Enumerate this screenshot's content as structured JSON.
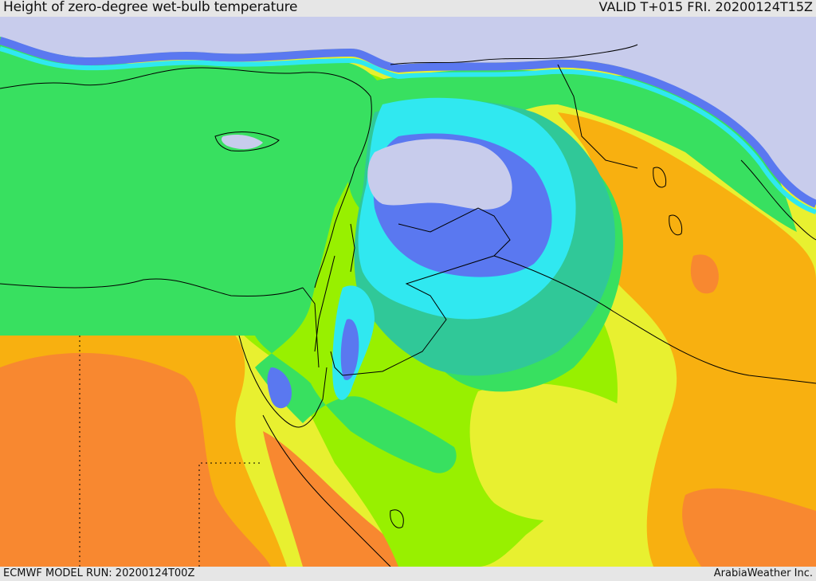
{
  "header": {
    "title": "Height of zero-degree wet-bulb temperature",
    "valid": "VALID T+015 FRI. 20200124T15Z"
  },
  "footer": {
    "model_run": "ECMWF MODEL RUN: 20200124T00Z",
    "credit": "ArabiaWeather Inc."
  },
  "palette": {
    "lavender": "#c8ccec",
    "blue": "#5a78f0",
    "cyan": "#30e8f0",
    "teal": "#30c898",
    "green": "#38e060",
    "lime": "#98f000",
    "yellow": "#e8f030",
    "gold": "#f8b010",
    "orange": "#f88830",
    "red": "#ff4020",
    "border": "#000000"
  }
}
